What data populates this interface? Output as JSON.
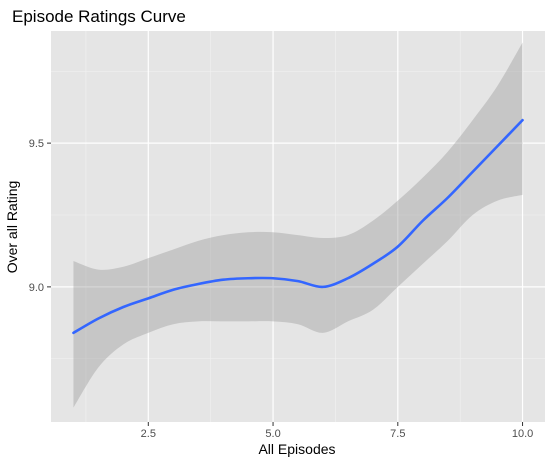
{
  "chart_data": {
    "type": "line",
    "title": "Episode Ratings Curve",
    "xlabel": "All Episodes",
    "ylabel": "Over all Rating",
    "xlim": [
      0.55,
      10.45
    ],
    "ylim": [
      8.53,
      9.89
    ],
    "x_ticks": [
      2.5,
      5.0,
      7.5,
      10.0
    ],
    "x_tick_labels": [
      "2.5",
      "5.0",
      "7.5",
      "10.0"
    ],
    "y_ticks": [
      9.0,
      9.5
    ],
    "y_tick_labels": [
      "9.0",
      "9.5"
    ],
    "grid": true,
    "colors": {
      "panel_background": "#e5e5e5",
      "grid_major": "#ffffff",
      "grid_minor": "#f2f2f2",
      "line": "#3366ff",
      "ribbon": "#999999"
    },
    "series": [
      {
        "type": "smooth_line_with_confidence_band",
        "x": [
          1.0,
          1.5,
          2.0,
          2.5,
          3.0,
          3.5,
          4.0,
          4.5,
          5.0,
          5.5,
          6.0,
          6.5,
          7.0,
          7.5,
          8.0,
          8.5,
          9.0,
          9.5,
          10.0
        ],
        "y": [
          8.84,
          8.89,
          8.93,
          8.96,
          8.99,
          9.01,
          9.025,
          9.03,
          9.03,
          9.02,
          9.0,
          9.03,
          9.08,
          9.14,
          9.23,
          9.31,
          9.4,
          9.49,
          9.58
        ],
        "lower": [
          8.58,
          8.72,
          8.8,
          8.84,
          8.87,
          8.88,
          8.88,
          8.88,
          8.88,
          8.87,
          8.84,
          8.88,
          8.92,
          9.0,
          9.08,
          9.16,
          9.25,
          9.3,
          9.32
        ],
        "upper": [
          9.09,
          9.06,
          9.07,
          9.1,
          9.13,
          9.16,
          9.18,
          9.19,
          9.19,
          9.18,
          9.17,
          9.18,
          9.23,
          9.3,
          9.38,
          9.47,
          9.58,
          9.7,
          9.85
        ]
      }
    ]
  }
}
